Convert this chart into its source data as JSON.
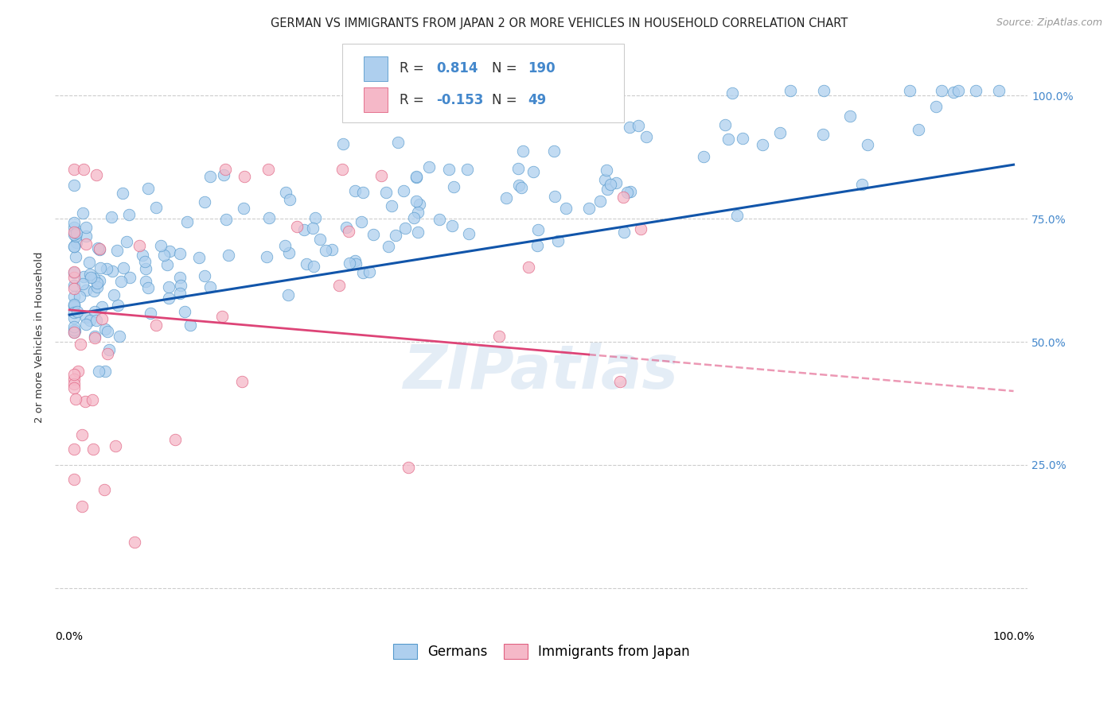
{
  "title": "GERMAN VS IMMIGRANTS FROM JAPAN 2 OR MORE VEHICLES IN HOUSEHOLD CORRELATION CHART",
  "source": "Source: ZipAtlas.com",
  "ylabel": "2 or more Vehicles in Household",
  "watermark": "ZIPatlas",
  "blue_R": 0.814,
  "blue_N": 190,
  "pink_R": -0.153,
  "pink_N": 49,
  "blue_color": "#aecfee",
  "pink_color": "#f5b8c8",
  "blue_edge_color": "#5599cc",
  "pink_edge_color": "#e06080",
  "blue_line_color": "#1155aa",
  "pink_line_color": "#dd4477",
  "background_color": "#ffffff",
  "grid_color": "#cccccc",
  "right_tick_color": "#4488cc",
  "x_tick_labels": [
    "0.0%",
    "",
    "",
    "",
    "",
    "",
    "",
    "",
    "",
    "",
    "100.0%"
  ],
  "y_tick_labels_right": [
    "",
    "25.0%",
    "50.0%",
    "75.0%",
    "100.0%"
  ],
  "xlim": [
    -0.015,
    1.015
  ],
  "ylim": [
    -0.08,
    1.1
  ],
  "title_fontsize": 10.5,
  "source_fontsize": 9,
  "axis_label_fontsize": 9.5,
  "tick_fontsize": 10,
  "legend_fontsize": 12,
  "watermark_fontsize": 55
}
